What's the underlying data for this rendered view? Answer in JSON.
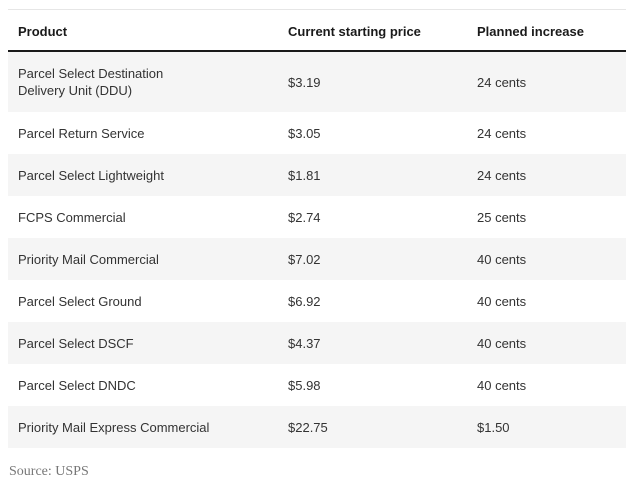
{
  "table": {
    "headers": [
      "Product",
      "Current starting price",
      "Planned increase"
    ],
    "rows": [
      [
        "Parcel Select Destination Delivery Unit (DDU)",
        "$3.19",
        "24 cents"
      ],
      [
        "Parcel Return Service",
        "$3.05",
        "24 cents"
      ],
      [
        "Parcel Select Lightweight",
        "$1.81",
        "24 cents"
      ],
      [
        "FCPS Commercial",
        "$2.74",
        "25 cents"
      ],
      [
        "Priority Mail Commercial",
        "$7.02",
        "40 cents"
      ],
      [
        "Parcel Select Ground",
        "$6.92",
        "40 cents"
      ],
      [
        "Parcel Select DSCF",
        "$4.37",
        "40 cents"
      ],
      [
        "Parcel Select DNDC",
        "$5.98",
        "40 cents"
      ],
      [
        "Priority Mail Express Commercial",
        "$22.75",
        "$1.50"
      ]
    ]
  },
  "source": "Source: USPS"
}
